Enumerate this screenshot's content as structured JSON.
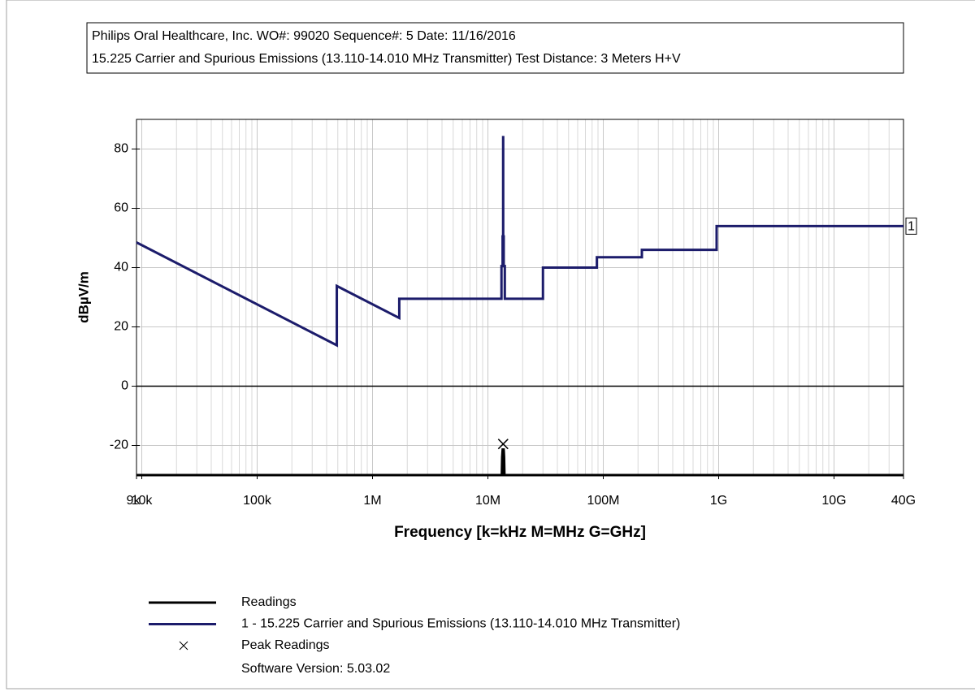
{
  "chart_data": {
    "type": "line",
    "title": "Philips Oral Healthcare, Inc. WO#: 99020 Sequence#: 5 Date:  11/16/2016",
    "subtitle": "15.225 Carrier and Spurious Emissions (13.110-14.010 MHz Transmitter)  Test Distance: 3 Meters  H+V",
    "xlabel": "Frequency [k=kHz M=MHz G=GHz]",
    "ylabel": "dBµV/m",
    "log_x": true,
    "grid": true,
    "xlim": [
      9000,
      40000000000
    ],
    "xticks": [
      {
        "value": 9000,
        "label": "9k"
      },
      {
        "value": 10000,
        "label": "10k"
      },
      {
        "value": 100000,
        "label": "100k"
      },
      {
        "value": 1000000,
        "label": "1M"
      },
      {
        "value": 10000000,
        "label": "10M"
      },
      {
        "value": 100000000,
        "label": "100M"
      },
      {
        "value": 1000000000,
        "label": "1G"
      },
      {
        "value": 10000000000,
        "label": "10G"
      },
      {
        "value": 40000000000,
        "label": "40G"
      }
    ],
    "ylim": [
      -30,
      90
    ],
    "yticks": [
      -20,
      0,
      20,
      40,
      60,
      80
    ],
    "series": [
      {
        "name": "Readings",
        "color": "#000000",
        "x": [
          13300000,
          13400000,
          13500000,
          13560000,
          13620000,
          13700000,
          13800000
        ],
        "values": [
          -30,
          -24,
          -22,
          -21,
          -22,
          -24,
          -30
        ]
      },
      {
        "name": "1 - 15.225 Carrier and Spurious Emissions (13.110-14.010 MHz Transmitter)",
        "color": "#1c1c6b",
        "end_label": "1",
        "x": [
          9000,
          490000,
          490000,
          1705000,
          1705000,
          13110000,
          13110000,
          13410000,
          13410000,
          13553000,
          13553000,
          13567000,
          13567000,
          13710000,
          13710000,
          14010000,
          14010000,
          30000000,
          30000000,
          88000000,
          88000000,
          216000000,
          216000000,
          960000000,
          960000000,
          40000000000
        ],
        "values": [
          48.5,
          13.8,
          33.8,
          23,
          29.5,
          29.5,
          40.5,
          40.5,
          50.5,
          50.5,
          84,
          84,
          50.5,
          50.5,
          40.5,
          40.5,
          29.5,
          29.5,
          40,
          40,
          43.5,
          43.5,
          46,
          46,
          54,
          54
        ]
      },
      {
        "name": "Peak Readings",
        "color": "#000000",
        "marker": "x",
        "x": [
          13560000
        ],
        "values": [
          -19.5
        ]
      }
    ],
    "note": "Software Version: 5.03.02"
  }
}
